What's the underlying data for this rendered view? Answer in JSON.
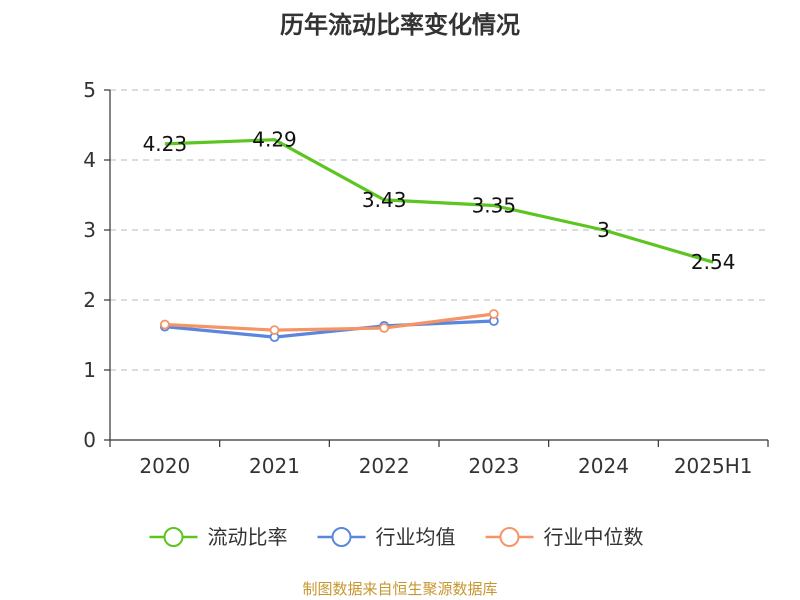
{
  "chart_data": {
    "type": "line",
    "title": "历年流动比率变化情况",
    "categories": [
      "2020",
      "2021",
      "2022",
      "2023",
      "2024",
      "2025H1"
    ],
    "ylim": [
      0,
      5
    ],
    "yticks": [
      "0",
      "1",
      "2",
      "3",
      "4",
      "5"
    ],
    "grid": true,
    "legend_position": "bottom",
    "series": [
      {
        "name": "流动比率",
        "color": "#5cc520",
        "values": [
          4.23,
          4.29,
          3.43,
          3.35,
          3.0,
          2.54
        ],
        "labels": [
          "4.23",
          "4.29",
          "3.43",
          "3.35",
          "3",
          "2.54"
        ],
        "markers": false
      },
      {
        "name": "行业均值",
        "color": "#5b86de",
        "values": [
          1.62,
          1.47,
          1.63,
          1.7,
          null,
          null
        ],
        "markers": true
      },
      {
        "name": "行业中位数",
        "color": "#f59566",
        "values": [
          1.65,
          1.57,
          1.6,
          1.8,
          null,
          null
        ],
        "markers": true
      }
    ],
    "source": "制图数据来自恒生聚源数据库",
    "source_color": "#c8962e"
  }
}
